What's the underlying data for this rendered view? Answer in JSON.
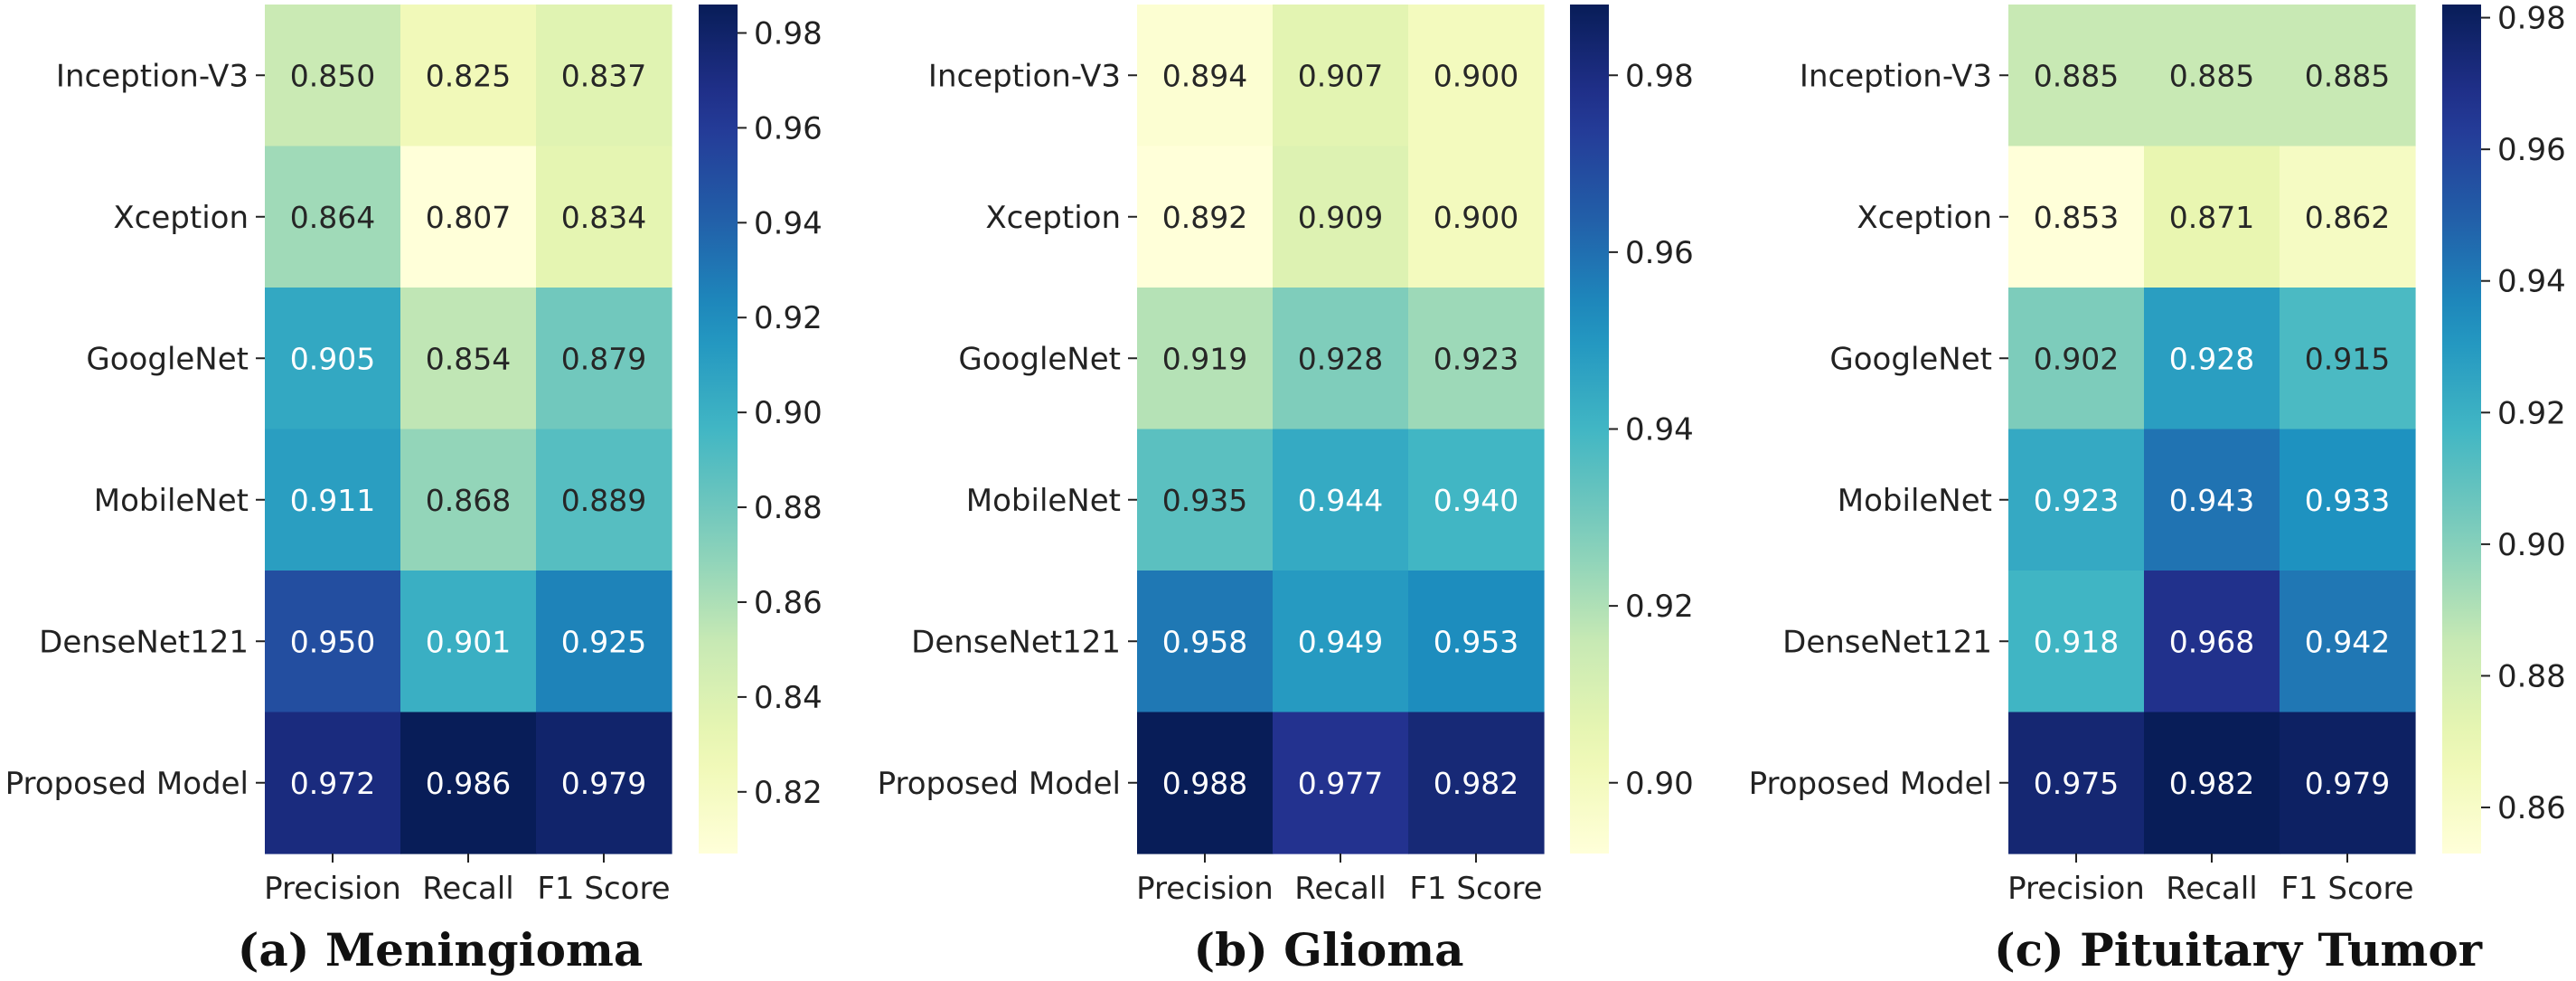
{
  "colormap": [
    "#ffffd9",
    "#edf8b1",
    "#c7e9b4",
    "#7fcdbb",
    "#41b6c4",
    "#1d91c0",
    "#225ea8",
    "#253494",
    "#081d58"
  ],
  "chart_data": [
    {
      "type": "heatmap",
      "title": "(a) Meningioma",
      "rows": [
        "Inception-V3",
        "Xception",
        "GoogleNet",
        "MobileNet",
        "DenseNet121",
        "Proposed Model"
      ],
      "columns": [
        "Precision",
        "Recall",
        "F1 Score"
      ],
      "values": [
        [
          0.85,
          0.825,
          0.837
        ],
        [
          0.864,
          0.807,
          0.834
        ],
        [
          0.905,
          0.854,
          0.879
        ],
        [
          0.911,
          0.868,
          0.889
        ],
        [
          0.95,
          0.901,
          0.925
        ],
        [
          0.972,
          0.986,
          0.979
        ]
      ],
      "value_labels": [
        [
          "0.850",
          "0.825",
          "0.837"
        ],
        [
          "0.864",
          "0.807",
          "0.834"
        ],
        [
          "0.905",
          "0.854",
          "0.879"
        ],
        [
          "0.911",
          "0.868",
          "0.889"
        ],
        [
          "0.950",
          "0.901",
          "0.925"
        ],
        [
          "0.972",
          "0.986",
          "0.979"
        ]
      ],
      "colorbar_ticks": [
        0.82,
        0.84,
        0.86,
        0.88,
        0.9,
        0.92,
        0.94,
        0.96,
        0.98
      ],
      "colorbar_tick_labels": [
        "0.82",
        "0.84",
        "0.86",
        "0.88",
        "0.90",
        "0.92",
        "0.94",
        "0.96",
        "0.98"
      ],
      "vmin": 0.807,
      "vmax": 0.986
    },
    {
      "type": "heatmap",
      "title": "(b) Glioma",
      "rows": [
        "Inception-V3",
        "Xception",
        "GoogleNet",
        "MobileNet",
        "DenseNet121",
        "Proposed Model"
      ],
      "columns": [
        "Precision",
        "Recall",
        "F1 Score"
      ],
      "values": [
        [
          0.894,
          0.907,
          0.9
        ],
        [
          0.892,
          0.909,
          0.9
        ],
        [
          0.919,
          0.928,
          0.923
        ],
        [
          0.935,
          0.944,
          0.94
        ],
        [
          0.958,
          0.949,
          0.953
        ],
        [
          0.988,
          0.977,
          0.982
        ]
      ],
      "value_labels": [
        [
          "0.894",
          "0.907",
          "0.900"
        ],
        [
          "0.892",
          "0.909",
          "0.900"
        ],
        [
          "0.919",
          "0.928",
          "0.923"
        ],
        [
          "0.935",
          "0.944",
          "0.940"
        ],
        [
          "0.958",
          "0.949",
          "0.953"
        ],
        [
          "0.988",
          "0.977",
          "0.982"
        ]
      ],
      "colorbar_ticks": [
        0.9,
        0.92,
        0.94,
        0.96,
        0.98
      ],
      "colorbar_tick_labels": [
        "0.90",
        "0.92",
        "0.94",
        "0.96",
        "0.98"
      ],
      "vmin": 0.892,
      "vmax": 0.988
    },
    {
      "type": "heatmap",
      "title": "(c) Pituitary Tumor",
      "rows": [
        "Inception-V3",
        "Xception",
        "GoogleNet",
        "MobileNet",
        "DenseNet121",
        "Proposed Model"
      ],
      "columns": [
        "Precision",
        "Recall",
        "F1 Score"
      ],
      "values": [
        [
          0.885,
          0.885,
          0.885
        ],
        [
          0.853,
          0.871,
          0.862
        ],
        [
          0.902,
          0.928,
          0.915
        ],
        [
          0.923,
          0.943,
          0.933
        ],
        [
          0.918,
          0.968,
          0.942
        ],
        [
          0.975,
          0.982,
          0.979
        ]
      ],
      "value_labels": [
        [
          "0.885",
          "0.885",
          "0.885"
        ],
        [
          "0.853",
          "0.871",
          "0.862"
        ],
        [
          "0.902",
          "0.928",
          "0.915"
        ],
        [
          "0.923",
          "0.943",
          "0.933"
        ],
        [
          "0.918",
          "0.968",
          "0.942"
        ],
        [
          "0.975",
          "0.982",
          "0.979"
        ]
      ],
      "colorbar_ticks": [
        0.86,
        0.88,
        0.9,
        0.92,
        0.94,
        0.96,
        0.98
      ],
      "colorbar_tick_labels": [
        "0.86",
        "0.88",
        "0.90",
        "0.92",
        "0.94",
        "0.96",
        "0.98"
      ],
      "vmin": 0.853,
      "vmax": 0.982
    }
  ]
}
